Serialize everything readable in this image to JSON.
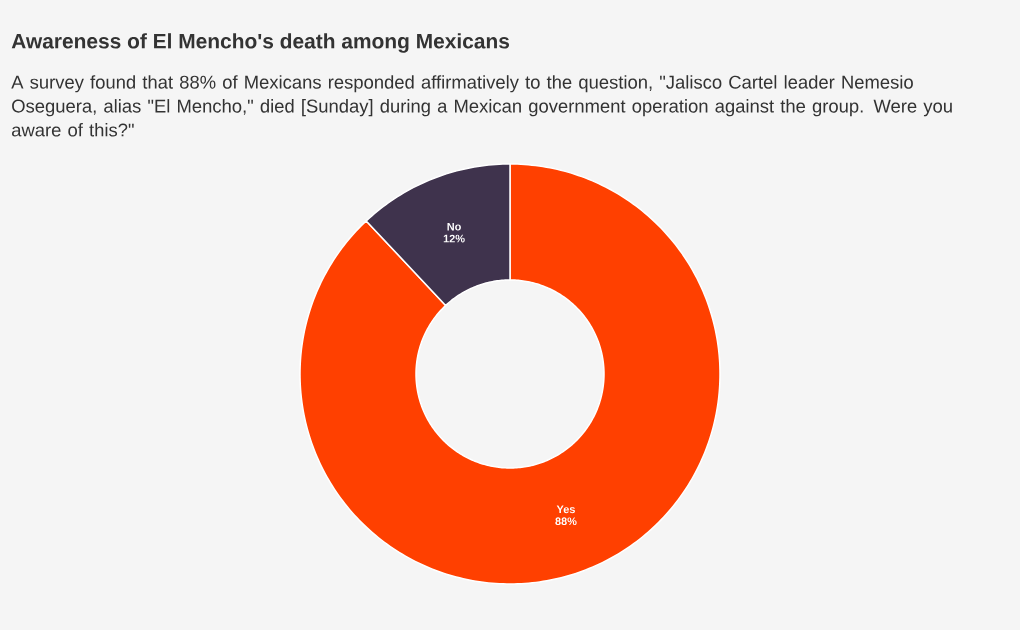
{
  "chart_data": {
    "type": "donut",
    "title": "Awareness of El Mencho's death among Mexicans",
    "subtitle": "A survey found that 88% of Mexicans responded affirmatively to the question, \"Jalisco Cartel leader Nemesio Oseguera, alias \"El Mencho,\" died [Sunday] during a Mexican government operation against the group. Were you aware of this?\"",
    "categories": [
      "Yes",
      "No"
    ],
    "values": [
      88,
      12
    ],
    "colors": [
      "#ff4000",
      "#3f334d"
    ],
    "value_labels": [
      "88%",
      "12%"
    ]
  }
}
